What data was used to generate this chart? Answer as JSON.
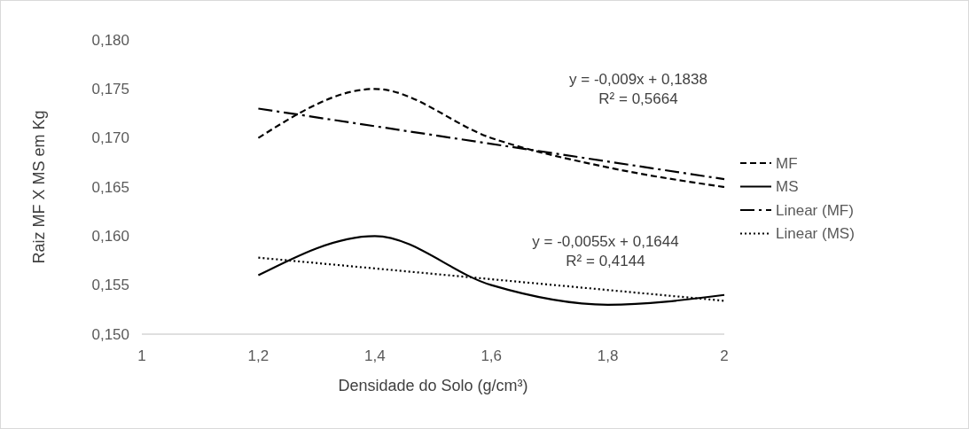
{
  "chart_data": {
    "type": "line",
    "xlabel": "Densidade do Solo (g/cm³)",
    "ylabel": "Raiz MF X MS em Kg",
    "xlim": [
      1,
      2
    ],
    "xticks": [
      1,
      {
        "value": 1.2,
        "label": "1,2"
      },
      {
        "value": 1.4,
        "label": "1,4"
      },
      {
        "value": 1.6,
        "label": "1,6"
      },
      {
        "value": 1.8,
        "label": "1,8"
      },
      2
    ],
    "ylim": [
      0.15,
      0.18
    ],
    "yticks": [
      {
        "value": 0.15,
        "label": "0,150"
      },
      {
        "value": 0.155,
        "label": "0,155"
      },
      {
        "value": 0.16,
        "label": "0,160"
      },
      {
        "value": 0.165,
        "label": "0,165"
      },
      {
        "value": 0.17,
        "label": "0,170"
      },
      {
        "value": 0.175,
        "label": "0,175"
      },
      {
        "value": 0.18,
        "label": "0,180"
      }
    ],
    "grid": false,
    "legend": "right",
    "series": [
      {
        "name": "MF",
        "color": "#000000",
        "line_style": "dashed",
        "x": [
          1.2,
          1.4,
          1.6,
          1.8,
          2
        ],
        "values": [
          0.17,
          0.175,
          0.17,
          0.167,
          0.165
        ]
      },
      {
        "name": "MS",
        "color": "#000000",
        "line_style": "solid",
        "x": [
          1.2,
          1.4,
          1.6,
          1.8,
          2
        ],
        "values": [
          0.156,
          0.16,
          0.155,
          0.153,
          0.154
        ]
      },
      {
        "name": "Linear (MF)",
        "color": "#000000",
        "line_style": "dashdot",
        "x": [
          1.2,
          2
        ],
        "values": [
          0.173,
          0.1658
        ]
      },
      {
        "name": "Linear (MS)",
        "color": "#000000",
        "line_style": "dotted",
        "x": [
          1.2,
          2
        ],
        "values": [
          0.1578,
          0.1534
        ]
      }
    ],
    "annotations": [
      "y = -0,009x + 0,1838",
      "R² = 0,5664",
      "y = -0,0055x + 0,1644",
      "R² = 0,4144"
    ]
  }
}
